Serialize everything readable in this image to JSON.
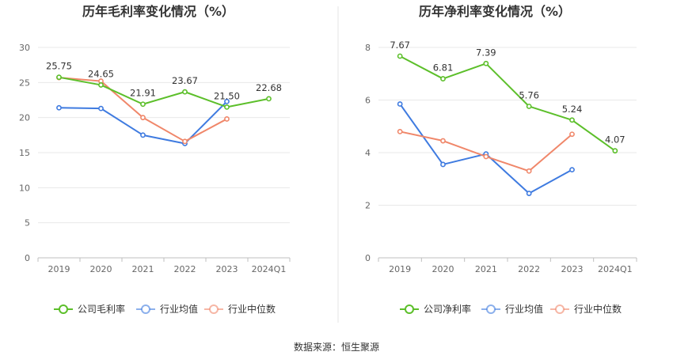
{
  "chart_data": [
    {
      "type": "line",
      "title": "历年毛利率变化情况（%）",
      "categories": [
        "2019",
        "2020",
        "2021",
        "2022",
        "2023",
        "2024Q1"
      ],
      "ylim": [
        0,
        30
      ],
      "yticks": [
        0,
        5,
        10,
        15,
        20,
        25,
        30
      ],
      "grid": true,
      "legend_position": "bottom",
      "series": [
        {
          "name": "公司毛利率",
          "color": "#5cbf2a",
          "values": [
            25.75,
            24.65,
            21.91,
            23.67,
            21.5,
            22.68
          ],
          "labels": [
            "25.75",
            "24.65",
            "21.91",
            "23.67",
            "21.50",
            "22.68"
          ]
        },
        {
          "name": "行业均值",
          "color": "#3f7be0",
          "values": [
            21.4,
            21.3,
            17.5,
            16.3,
            22.3,
            null
          ]
        },
        {
          "name": "行业中位数",
          "color": "#f0876a",
          "values": [
            25.7,
            25.2,
            20.0,
            16.6,
            19.8,
            null
          ]
        }
      ]
    },
    {
      "type": "line",
      "title": "历年净利率变化情况（%）",
      "categories": [
        "2019",
        "2020",
        "2021",
        "2022",
        "2023",
        "2024Q1"
      ],
      "ylim": [
        0,
        8
      ],
      "yticks": [
        0,
        2,
        4,
        6,
        8
      ],
      "grid": true,
      "legend_position": "bottom",
      "series": [
        {
          "name": "公司净利率",
          "color": "#5cbf2a",
          "values": [
            7.67,
            6.81,
            7.39,
            5.76,
            5.24,
            4.07
          ],
          "labels": [
            "7.67",
            "6.81",
            "7.39",
            "5.76",
            "5.24",
            "4.07"
          ]
        },
        {
          "name": "行业均值",
          "color": "#3f7be0",
          "values": [
            5.85,
            3.55,
            3.95,
            2.45,
            3.35,
            null
          ]
        },
        {
          "name": "行业中位数",
          "color": "#f0876a",
          "values": [
            4.8,
            4.45,
            3.85,
            3.3,
            4.7,
            null
          ]
        }
      ]
    }
  ],
  "footer": {
    "source": "数据来源：恒生聚源"
  }
}
